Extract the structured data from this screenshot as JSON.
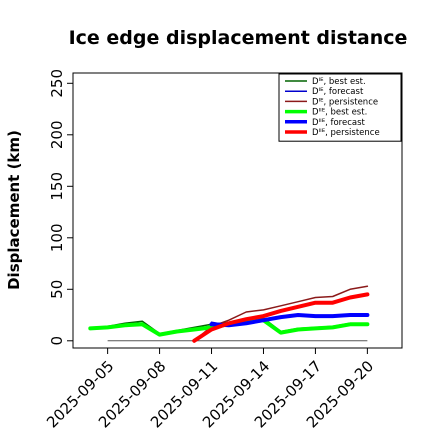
{
  "chart_data": {
    "type": "line",
    "title": "Ice edge displacement distance",
    "xlabel": "",
    "ylabel": "Displacement (km)",
    "ylim": [
      -7,
      260
    ],
    "yticks": [
      0,
      50,
      100,
      150,
      200,
      250
    ],
    "xlim": [
      "2025-09-03",
      "2025-09-22"
    ],
    "xticks": [
      {
        "date": "2025-09-05",
        "label": "2025-09-05",
        "color": "#000000"
      },
      {
        "date": "2025-09-08",
        "label": "2025-09-08",
        "color": "#000000"
      },
      {
        "date": "2025-09-11",
        "label": "2025-09-11",
        "color": "#228B22"
      },
      {
        "date": "2025-09-14",
        "label": "2025-09-14",
        "color": "#000000"
      },
      {
        "date": "2025-09-17",
        "label": "2025-09-17",
        "color": "#000000"
      },
      {
        "date": "2025-09-20",
        "label": "2025-09-20",
        "color": "#000000"
      }
    ],
    "baseline": {
      "y": 0,
      "from": "2025-09-05",
      "to": "2025-09-20",
      "color": "#555555"
    },
    "legend_position": "top-right",
    "series": [
      {
        "name": "Dᴵᴱ, best est.",
        "color": "#006400",
        "width": 1.5,
        "x": [
          "2025-09-04",
          "2025-09-05",
          "2025-09-06",
          "2025-09-07",
          "2025-09-08",
          "2025-09-09",
          "2025-09-10",
          "2025-09-11",
          "2025-09-12",
          "2025-09-13",
          "2025-09-14",
          "2025-09-15",
          "2025-09-16",
          "2025-09-17",
          "2025-09-18",
          "2025-09-19",
          "2025-09-20"
        ],
        "y": [
          12,
          14,
          17,
          19,
          7,
          10,
          13,
          16,
          18,
          20,
          22,
          9,
          12,
          13,
          14,
          17,
          17
        ]
      },
      {
        "name": "Dᴵᴱ, forecast",
        "color": "#0000cd",
        "width": 1.5,
        "x": [
          "2025-09-11",
          "2025-09-12",
          "2025-09-13",
          "2025-09-14",
          "2025-09-15",
          "2025-09-16",
          "2025-09-17",
          "2025-09-18",
          "2025-09-19",
          "2025-09-20"
        ],
        "y": [
          18,
          15,
          17,
          20,
          23,
          25,
          24,
          24,
          25,
          25
        ]
      },
      {
        "name": "Dᴵᴱ, persistence",
        "color": "#8b1a1a",
        "width": 1.5,
        "x": [
          "2025-09-10",
          "2025-09-11",
          "2025-09-12",
          "2025-09-13",
          "2025-09-14",
          "2025-09-15",
          "2025-09-16",
          "2025-09-17",
          "2025-09-18",
          "2025-09-19",
          "2025-09-20"
        ],
        "y": [
          0,
          14,
          20,
          28,
          30,
          34,
          38,
          42,
          43,
          50,
          53
        ]
      },
      {
        "name": "Dᴵᴵᴱ, best est.",
        "color": "#00ff00",
        "width": 4,
        "x": [
          "2025-09-04",
          "2025-09-05",
          "2025-09-06",
          "2025-09-07",
          "2025-09-08",
          "2025-09-09",
          "2025-09-10",
          "2025-09-11",
          "2025-09-12",
          "2025-09-13",
          "2025-09-14",
          "2025-09-15",
          "2025-09-16",
          "2025-09-17",
          "2025-09-18",
          "2025-09-19",
          "2025-09-20"
        ],
        "y": [
          12,
          13,
          15,
          16,
          6,
          9,
          11,
          13,
          16,
          18,
          20,
          8,
          11,
          12,
          13,
          16,
          16
        ]
      },
      {
        "name": "Dᴵᴵᴱ, forecast",
        "color": "#0000ff",
        "width": 4,
        "x": [
          "2025-09-11",
          "2025-09-12",
          "2025-09-13",
          "2025-09-14",
          "2025-09-15",
          "2025-09-16",
          "2025-09-17",
          "2025-09-18",
          "2025-09-19",
          "2025-09-20"
        ],
        "y": [
          16,
          15,
          17,
          20,
          23,
          25,
          24,
          24,
          25,
          25
        ]
      },
      {
        "name": "Dᴵᴵᴱ, persistence",
        "color": "#ff0000",
        "width": 4,
        "x": [
          "2025-09-10",
          "2025-09-11",
          "2025-09-12",
          "2025-09-13",
          "2025-09-14",
          "2025-09-15",
          "2025-09-16",
          "2025-09-17",
          "2025-09-18",
          "2025-09-19",
          "2025-09-20"
        ],
        "y": [
          0,
          11,
          17,
          21,
          24,
          29,
          33,
          37,
          37,
          42,
          45
        ]
      }
    ]
  }
}
